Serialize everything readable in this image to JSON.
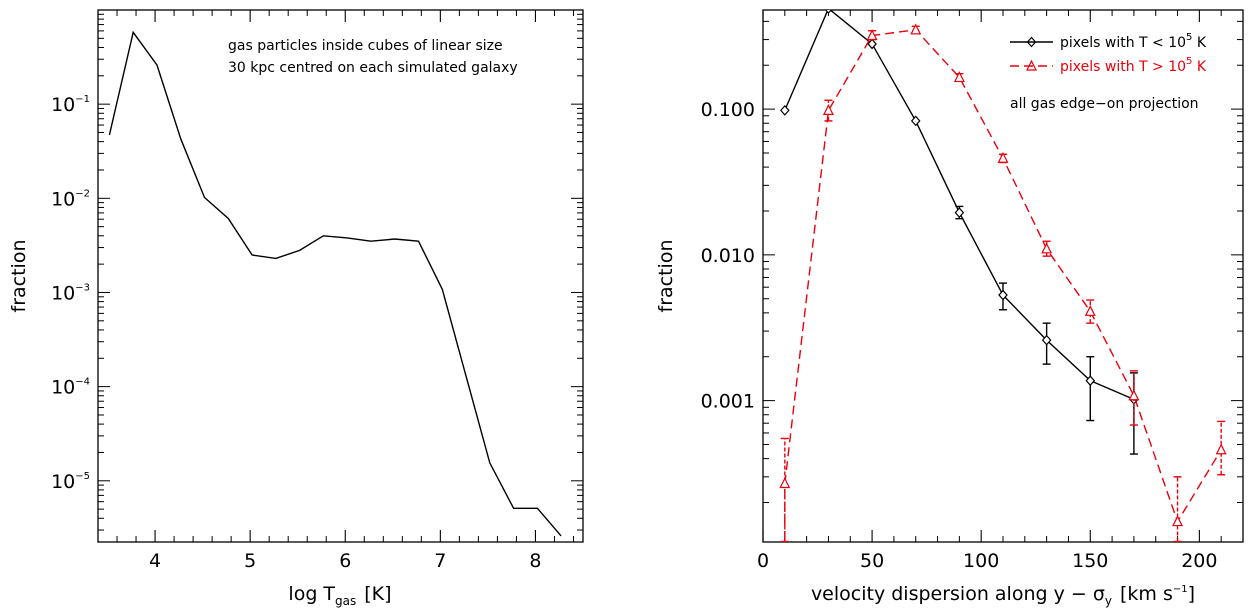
{
  "chart_data": [
    {
      "type": "line",
      "title": "",
      "xlabel": "log T",
      "xlabel_sub": "gas",
      "xlabel_unit": "[K]",
      "ylabel": "fraction",
      "xlim": [
        3.4,
        8.5
      ],
      "ylim_log10": [
        -5.65,
        0.0
      ],
      "yscale": "log",
      "grid": false,
      "x_ticks": [
        4,
        5,
        6,
        7,
        8
      ],
      "x_tick_labels": [
        "4",
        "5",
        "6",
        "7",
        "8"
      ],
      "y_ticks_log10": [
        -1,
        -2,
        -3,
        -4,
        -5
      ],
      "y_tick_mantissa": "10",
      "y_tick_exponents": [
        "−1",
        "−2",
        "−3",
        "−4",
        "−5"
      ],
      "annotation_lines": [
        "gas particles inside cubes of linear size",
        "30 kpc centred on each simulated galaxy"
      ],
      "series": [
        {
          "color": "#000000",
          "x": [
            3.52,
            3.77,
            4.02,
            4.27,
            4.52,
            4.77,
            5.02,
            5.27,
            5.52,
            5.77,
            6.02,
            6.27,
            6.52,
            6.77,
            7.02,
            7.27,
            7.52,
            7.77,
            8.02,
            8.27
          ],
          "y": [
            0.047,
            0.58,
            0.26,
            0.043,
            0.0102,
            0.0061,
            0.0025,
            0.0023,
            0.0028,
            0.004,
            0.0038,
            0.0035,
            0.0037,
            0.0035,
            0.00108,
            0.00013,
            1.55e-05,
            5.1e-06,
            5.1e-06,
            2.6e-06
          ]
        }
      ]
    },
    {
      "type": "line",
      "title": "",
      "xlabel": "velocity dispersion along y − σ",
      "xlabel_sub": "y",
      "xlabel_unit_pre": "[km s",
      "xlabel_unit_sup": "−1",
      "xlabel_unit_post": "]",
      "ylabel": "fraction",
      "xlim": [
        0,
        220
      ],
      "ylim_log10": [
        -3.97,
        -0.32
      ],
      "yscale": "log",
      "grid": false,
      "x_ticks": [
        0,
        50,
        100,
        150,
        200
      ],
      "x_tick_labels": [
        "0",
        "50",
        "100",
        "150",
        "200"
      ],
      "y_ticks_log10": [
        -1,
        -2,
        -3
      ],
      "y_tick_labels": [
        "0.100",
        "0.010",
        "0.001"
      ],
      "legend_position": "top-right",
      "annotation_lines": [
        "all gas edge−on projection"
      ],
      "series": [
        {
          "legend_pre": "pixels with T < 10",
          "legend_sup": "5",
          "legend_post": " K",
          "color": "#000000",
          "dash": "",
          "marker": "diamond",
          "x": [
            10,
            30,
            50,
            70,
            90,
            110,
            130,
            150,
            170
          ],
          "y": [
            0.098,
            0.49,
            0.28,
            0.083,
            0.0195,
            0.0053,
            0.0026,
            0.00137,
            0.00102
          ],
          "err_low": [
            0.098,
            0.49,
            0.28,
            0.083,
            0.0177,
            0.0042,
            0.00178,
            0.00073,
            0.00043
          ],
          "err_high": [
            0.098,
            0.49,
            0.28,
            0.083,
            0.0215,
            0.0064,
            0.0034,
            0.002,
            0.00155
          ]
        },
        {
          "legend_pre": "pixels with T > 10",
          "legend_sup": "5",
          "legend_post": " K",
          "color": "#e8000b",
          "dash": "9,5",
          "marker": "triangle",
          "x": [
            10,
            30,
            50,
            70,
            90,
            110,
            130,
            150,
            170,
            190,
            210
          ],
          "y": [
            0.00027,
            0.098,
            0.32,
            0.35,
            0.165,
            0.046,
            0.011,
            0.0041,
            0.00108,
            0.000148,
            0.00046
          ],
          "err_low": [
            0.000108,
            0.083,
            0.3,
            0.33,
            0.155,
            0.043,
            0.0098,
            0.0034,
            0.00068,
            0.000108,
            0.00031
          ],
          "err_high": [
            0.00055,
            0.115,
            0.345,
            0.37,
            0.175,
            0.049,
            0.0124,
            0.0049,
            0.0016,
            0.0003,
            0.00072
          ]
        }
      ]
    }
  ]
}
